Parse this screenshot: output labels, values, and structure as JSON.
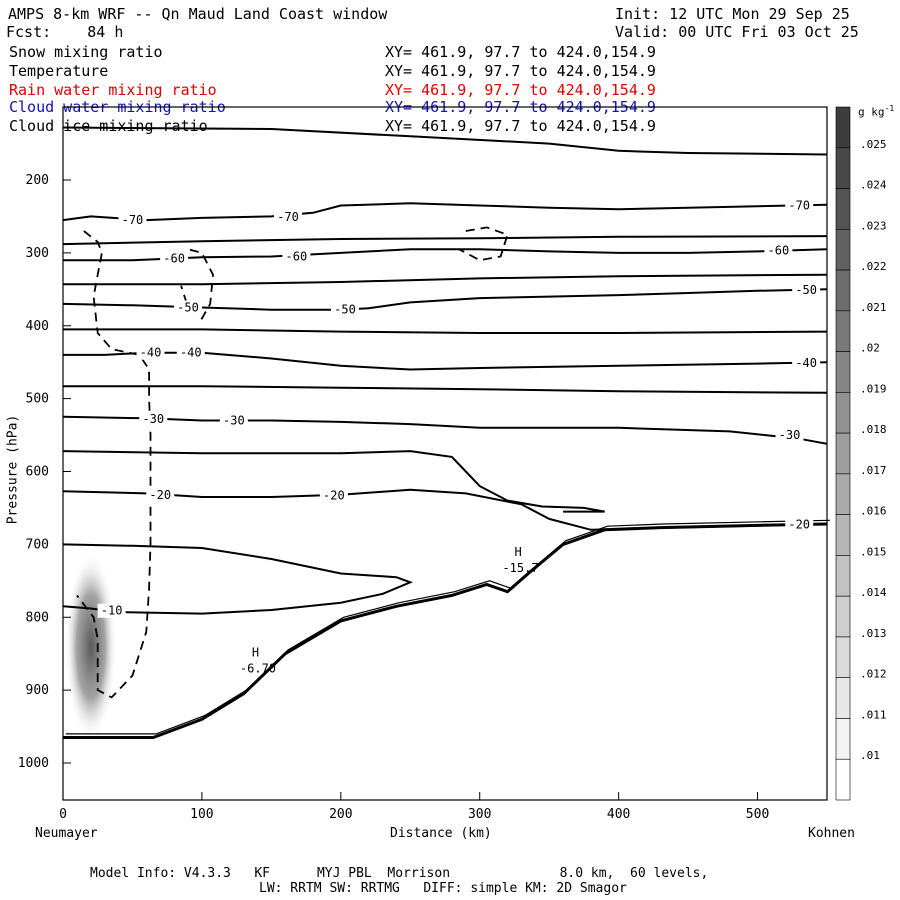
{
  "header": {
    "title": "AMPS 8-km WRF -- Qn Maud Land Coast window",
    "init": "Init: 12 UTC Mon 29 Sep 25",
    "fcst_label": "Fcst:",
    "fcst_value": "84 h",
    "valid": "Valid: 00 UTC Fri 03 Oct 25"
  },
  "fields": [
    {
      "name": "Snow mixing ratio",
      "xy": "XY= 461.9, 97.7 to 424.0,154.9",
      "color": "#000000"
    },
    {
      "name": "Temperature",
      "xy": "XY= 461.9, 97.7 to 424.0,154.9",
      "color": "#000000"
    },
    {
      "name": "Rain water mixing ratio",
      "xy": "XY= 461.9, 97.7 to 424.0,154.9",
      "color": "#e00000"
    },
    {
      "name": "Cloud water mixing ratio",
      "xy": "XY= 461.9, 97.7 to 424.0,154.9",
      "color": "#1010c0"
    },
    {
      "name": "Cloud ice mixing ratio",
      "xy": "XY= 461.9, 97.7 to 424.0,154.9",
      "color": "#000000"
    }
  ],
  "axes": {
    "xlabel": "Distance (km)",
    "ylabel": "Pressure (hPa)",
    "left_endpoint": "Neumayer",
    "right_endpoint": "Kohnen"
  },
  "colorbar": {
    "unit": "g kg",
    "unit_exp": "-1",
    "ticks": [
      ".025",
      ".024",
      ".023",
      ".022",
      ".021",
      ".02",
      ".019",
      ".018",
      ".017",
      ".016",
      ".015",
      ".014",
      ".013",
      ".012",
      ".011",
      ".01"
    ]
  },
  "footer": {
    "line1": "Model Info: V4.3.3   KF      MYJ PBL  Morrison              8.0 km,  60 levels,",
    "line2": "LW: RRTM SW: RRTMG   DIFF: simple KM: 2D Smagor"
  },
  "chart_data": {
    "type": "contour",
    "title": "AMPS 8-km WRF -- Qn Maud Land Coast window",
    "xlabel": "Distance (km)",
    "ylabel": "Pressure (hPa)",
    "xlim": [
      0,
      550
    ],
    "ylim": [
      1050,
      115
    ],
    "x_ticks": [
      0,
      100,
      200,
      300,
      400,
      500
    ],
    "y_ticks": [
      200,
      300,
      400,
      500,
      600,
      700,
      800,
      900,
      1000
    ],
    "y_tick_labels": [
      "200",
      "300",
      "400",
      "500",
      "600",
      "700",
      "800",
      "900",
      "1000"
    ],
    "x_tick_labels": [
      "0",
      "100",
      "200",
      "300",
      "400",
      "500"
    ],
    "temperature_contours": [
      {
        "label": "-70",
        "points": [
          [
            0,
            255
          ],
          [
            20,
            250
          ],
          [
            60,
            255
          ],
          [
            100,
            252
          ],
          [
            150,
            250
          ],
          [
            180,
            245
          ],
          [
            200,
            235
          ],
          [
            250,
            232
          ],
          [
            300,
            235
          ],
          [
            350,
            238
          ],
          [
            400,
            240
          ],
          [
            450,
            238
          ],
          [
            500,
            236
          ],
          [
            550,
            234
          ]
        ],
        "labels_at": [
          [
            50,
            255
          ],
          [
            162,
            251
          ],
          [
            530,
            235
          ]
        ]
      },
      {
        "label": "-60",
        "points": [
          [
            0,
            310
          ],
          [
            50,
            310
          ],
          [
            100,
            306
          ],
          [
            150,
            305
          ],
          [
            200,
            300
          ],
          [
            250,
            295
          ],
          [
            300,
            295
          ],
          [
            350,
            298
          ],
          [
            400,
            300
          ],
          [
            450,
            300
          ],
          [
            500,
            298
          ],
          [
            550,
            295
          ]
        ],
        "labels_at": [
          [
            80,
            308
          ],
          [
            168,
            305
          ],
          [
            515,
            297
          ]
        ]
      },
      {
        "label": "-50",
        "points": [
          [
            0,
            370
          ],
          [
            50,
            372
          ],
          [
            100,
            375
          ],
          [
            150,
            378
          ],
          [
            200,
            378
          ],
          [
            220,
            376
          ],
          [
            250,
            368
          ],
          [
            300,
            362
          ],
          [
            350,
            360
          ],
          [
            400,
            358
          ],
          [
            450,
            355
          ],
          [
            500,
            352
          ],
          [
            550,
            350
          ]
        ],
        "labels_at": [
          [
            90,
            375
          ],
          [
            203,
            378
          ],
          [
            535,
            351
          ]
        ]
      },
      {
        "label": "-40",
        "points": [
          [
            0,
            440
          ],
          [
            30,
            440
          ],
          [
            60,
            437
          ],
          [
            100,
            437
          ],
          [
            150,
            445
          ],
          [
            200,
            455
          ],
          [
            250,
            460
          ],
          [
            300,
            458
          ],
          [
            400,
            455
          ],
          [
            500,
            452
          ],
          [
            550,
            450
          ]
        ],
        "labels_at": [
          [
            63,
            437
          ],
          [
            92,
            437
          ],
          [
            535,
            451
          ]
        ]
      },
      {
        "label": "-30",
        "points": [
          [
            0,
            525
          ],
          [
            60,
            527
          ],
          [
            100,
            530
          ],
          [
            150,
            530
          ],
          [
            200,
            532
          ],
          [
            250,
            535
          ],
          [
            300,
            540
          ],
          [
            400,
            540
          ],
          [
            480,
            545
          ],
          [
            530,
            555
          ],
          [
            550,
            562
          ]
        ],
        "labels_at": [
          [
            65,
            528
          ],
          [
            123,
            530
          ],
          [
            523,
            550
          ]
        ]
      },
      {
        "label": "-20",
        "points": [
          [
            0,
            627
          ],
          [
            60,
            630
          ],
          [
            100,
            635
          ],
          [
            150,
            635
          ],
          [
            200,
            632
          ],
          [
            250,
            625
          ],
          [
            290,
            630
          ],
          [
            330,
            645
          ],
          [
            350,
            665
          ],
          [
            380,
            680
          ],
          [
            420,
            678
          ],
          [
            550,
            672
          ]
        ],
        "labels_at": [
          [
            70,
            632
          ],
          [
            195,
            633
          ],
          [
            530,
            673
          ]
        ]
      },
      {
        "label": "-10",
        "points": [
          [
            0,
            785
          ],
          [
            20,
            788
          ],
          [
            40,
            793
          ],
          [
            100,
            795
          ],
          [
            150,
            790
          ],
          [
            200,
            780
          ],
          [
            230,
            768
          ],
          [
            250,
            752
          ],
          [
            240,
            745
          ],
          [
            200,
            740
          ],
          [
            150,
            720
          ],
          [
            100,
            705
          ],
          [
            50,
            702
          ],
          [
            0,
            700
          ]
        ],
        "labels_at": [
          [
            35,
            791
          ]
        ]
      }
    ],
    "highs": [
      {
        "label": "H",
        "value": "-15.7",
        "x": 325,
        "p": 727
      },
      {
        "label": "H",
        "value": "-6.70",
        "x": 136,
        "p": 865
      }
    ],
    "terrain": {
      "note": "Thick terrain line rising from sea level at Neumayer to plateau near Kohnen",
      "points": [
        [
          0,
          965
        ],
        [
          65,
          965
        ],
        [
          100,
          940
        ],
        [
          130,
          905
        ],
        [
          160,
          850
        ],
        [
          200,
          805
        ],
        [
          240,
          785
        ],
        [
          280,
          770
        ],
        [
          305,
          755
        ],
        [
          320,
          765
        ],
        [
          335,
          740
        ],
        [
          360,
          700
        ],
        [
          390,
          680
        ],
        [
          430,
          677
        ],
        [
          500,
          674
        ],
        [
          550,
          672
        ]
      ]
    },
    "snow_max": {
      "value": 0.02,
      "x_center": 20,
      "p_center": 840,
      "unit": "g kg-1"
    },
    "colorbar_range": [
      0.01,
      0.025
    ],
    "colorbar_step": 0.001
  }
}
